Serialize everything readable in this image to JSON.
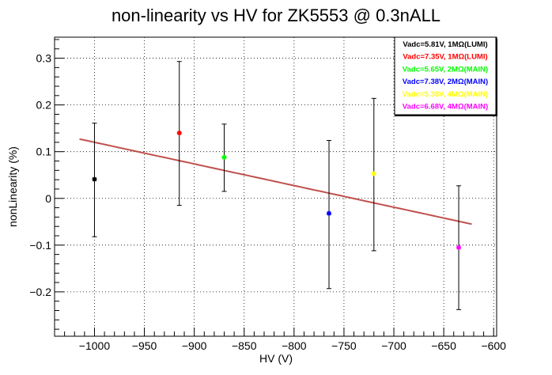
{
  "chart_data": {
    "type": "scatter",
    "title": "non-linearity vs HV for ZK5553 @ 0.3nALL",
    "xlabel": "HV (V)",
    "ylabel": "nonLinearity (%)",
    "xlim": [
      -1040,
      -597
    ],
    "ylim": [
      -0.295,
      0.345
    ],
    "x_ticks": [
      -1000,
      -950,
      -900,
      -850,
      -800,
      -750,
      -700,
      -650,
      -600
    ],
    "x_tick_labels": [
      "−1000",
      "−950",
      "−900",
      "−850",
      "−800",
      "−750",
      "−700",
      "−650",
      "−600"
    ],
    "y_ticks": [
      -0.2,
      -0.1,
      0,
      0.1,
      0.2,
      0.3
    ],
    "y_tick_labels": [
      "−0.2",
      "−0.1",
      "0",
      "0.1",
      "0.2",
      "0.3"
    ],
    "grid": true,
    "legend_position": "top-right",
    "series": [
      {
        "name": "Vadc=5.81V, 1MΩ(LUMI)",
        "color": "#000000",
        "x": -1000,
        "y": 0.041,
        "err_low": -0.082,
        "err_high": 0.161
      },
      {
        "name": "Vadc=7.35V, 1MΩ(LUMI)",
        "color": "#ff0000",
        "x": -915,
        "y": 0.14,
        "err_low": -0.015,
        "err_high": 0.293
      },
      {
        "name": "Vadc=5.65V, 2MΩ(MAIN)",
        "color": "#00ff00",
        "x": -870,
        "y": 0.088,
        "err_low": 0.015,
        "err_high": 0.159
      },
      {
        "name": "Vadc=7.38V, 2MΩ(MAIN)",
        "color": "#0000ff",
        "x": -765,
        "y": -0.032,
        "err_low": -0.193,
        "err_high": 0.124
      },
      {
        "name": "Vadc=5.38V, 4MΩ(MAIN)",
        "color": "#ffff00",
        "x": -720,
        "y": 0.053,
        "err_low": -0.112,
        "err_high": 0.214
      },
      {
        "name": "Vadc=6.68V, 4MΩ(MAIN)",
        "color": "#ff00ff",
        "x": -635,
        "y": -0.105,
        "err_low": -0.238,
        "err_high": 0.027
      }
    ],
    "fit_line": {
      "color": "#c0504d",
      "x": [
        -1015,
        -622
      ],
      "y": [
        0.127,
        -0.055
      ]
    }
  }
}
